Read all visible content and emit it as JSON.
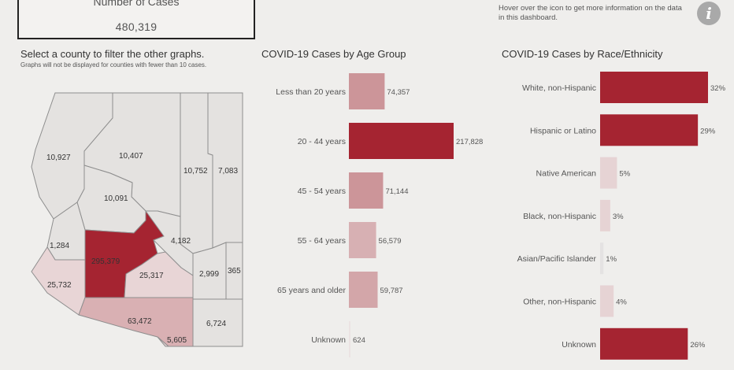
{
  "summary": {
    "label": "Number of Cases",
    "value": "480,319"
  },
  "hover_note": "Hover over the icon to get more information on the data in this dashboard.",
  "info_icon": "info-icon",
  "map": {
    "title": "Select a county to filter the other graphs.",
    "subtitle": "Graphs will not be displayed for counties with fewer than 10 cases.",
    "counties": [
      {
        "id": "mohave",
        "value": "10,927"
      },
      {
        "id": "coconino",
        "value": "10,407"
      },
      {
        "id": "navajo",
        "value": "10,752"
      },
      {
        "id": "apache",
        "value": "7,083"
      },
      {
        "id": "yavapai",
        "value": "10,091"
      },
      {
        "id": "lapaz",
        "value": "1,284"
      },
      {
        "id": "maricopa",
        "value": "295,379"
      },
      {
        "id": "gila",
        "value": "4,182"
      },
      {
        "id": "yuma",
        "value": "25,732"
      },
      {
        "id": "pinal",
        "value": "25,317"
      },
      {
        "id": "graham",
        "value": "2,999"
      },
      {
        "id": "greenlee",
        "value": "365"
      },
      {
        "id": "pima",
        "value": "63,472"
      },
      {
        "id": "santacruz",
        "value": "5,605"
      },
      {
        "id": "cochise",
        "value": "6,724"
      }
    ],
    "colors": {
      "base": "#e4e2e0",
      "highlight": "#a52431",
      "medium": "#d9b0b3",
      "light": "#e8d5d6",
      "border": "#8e8e8e"
    }
  },
  "chart_data": [
    {
      "type": "bar",
      "orientation": "horizontal",
      "title": "COVID-19 Cases by Age Group",
      "categories": [
        "Less than 20 years",
        "20 - 44 years",
        "45 - 54 years",
        "55 - 64 years",
        "65 years and older",
        "Unknown"
      ],
      "values": [
        74357,
        217828,
        71144,
        56579,
        59787,
        624
      ],
      "labels": [
        "74,357",
        "217,828",
        "71,144",
        "56,579",
        "59,787",
        "624"
      ],
      "colors": [
        "#cc9599",
        "#a52431",
        "#cc9599",
        "#d7b0b3",
        "#d3a6a9",
        "#ebe3e3"
      ]
    },
    {
      "type": "bar",
      "orientation": "horizontal",
      "title": "COVID-19 Cases by Race/Ethnicity",
      "categories": [
        "White, non-Hispanic",
        "Hispanic or Latino",
        "Native American",
        "Black, non-Hispanic",
        "Asian/Pacific Islander",
        "Other, non-Hispanic",
        "Unknown"
      ],
      "values": [
        32,
        29,
        5,
        3,
        1,
        4,
        26
      ],
      "labels": [
        "32%",
        "29%",
        "5%",
        "3%",
        "1%",
        "4%",
        "26%"
      ],
      "colors": [
        "#a52431",
        "#a52431",
        "#e6d3d4",
        "#e6d3d4",
        "#e4e2e2",
        "#e6d3d4",
        "#a52431"
      ]
    }
  ]
}
